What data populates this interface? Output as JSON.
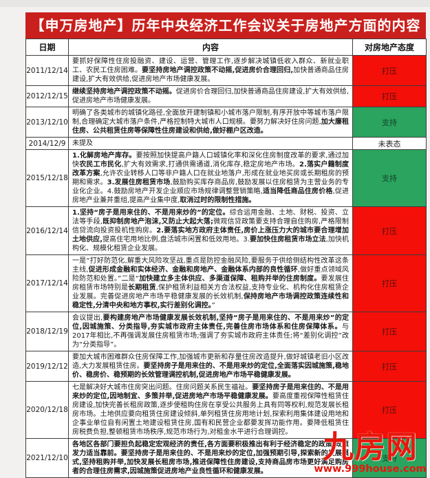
{
  "page": {
    "title": "【申万房地产】历年中央经济工作会议关于房地产方面的内容"
  },
  "colors": {
    "title_bg": "#c9201d",
    "suppress_bg": "#f40f08",
    "support_bg": "#2aa45e",
    "watermark_red": "#e8170d"
  },
  "table": {
    "headers": {
      "date": "日期",
      "content": "内容",
      "attitude": "对房地产态度"
    },
    "rows": [
      {
        "date": "2011/12/14",
        "attitude": "打压",
        "attitude_type": "suppress",
        "segments": [
          {
            "b": false,
            "t": "要抓好保障性住房投融资、建设、运营、管理工作,逐步解决城镇低收入群众、新就业职工、农民工住房困难。"
          },
          {
            "b": true,
            "t": "要坚持房地产调控政策不动摇,促进房价合理回归,"
          },
          {
            "b": false,
            "t": "加快普通商品住房建设,扩大有效供给,促进房地产市场健康发展。"
          }
        ]
      },
      {
        "date": "2012/12/15",
        "attitude": "打压",
        "attitude_type": "suppress",
        "segments": [
          {
            "b": true,
            "t": "继续坚持房地产调控政策不动摇。"
          },
          {
            "b": false,
            "t": "促进房价合理回归,加快普通商品住房建设,扩大有效供给,促进房地产市场健康发展。"
          }
        ]
      },
      {
        "date": "2013/12/10",
        "attitude": "支持",
        "attitude_type": "support",
        "segments": [
          {
            "b": false,
            "t": "明确了各类城市的城镇化路径,全面放开建制镇和小城市落户限制,有序开放中等城市落户限制,合理确定大城市落户条件,严格控制特大城市人口规模。要努力解决好住房问题,"
          },
          {
            "b": true,
            "t": "加大廉租住房、公共租赁住房等保障性住房建设和供给,做好棚户区改造。"
          }
        ]
      },
      {
        "date": "2014/12/9",
        "attitude": "未表态",
        "attitude_type": "none",
        "segments": [
          {
            "b": false,
            "t": "未提及"
          }
        ]
      },
      {
        "date": "2015/12/18",
        "attitude": "支持",
        "attitude_type": "support",
        "segments": [
          {
            "b": true,
            "t": "1.化解房地产库存。"
          },
          {
            "b": false,
            "t": "要按照加快提高户籍人口城镇化率和深化住房制度改革的要求,通过加快"
          },
          {
            "b": true,
            "t": "农民工市民化"
          },
          {
            "b": false,
            "t": ",扩大有效需求,打通供需通道,消化库存,稳定房地产市场。"
          },
          {
            "b": true,
            "t": "2.落实户籍制度改革方案"
          },
          {
            "b": false,
            "t": ",允许农业转移人口等非户籍人口在就业地落户,形成在就业地买房或长期租房的预期和需求。"
          },
          {
            "b": true,
            "t": "3.发展住房租赁市场"
          },
          {
            "b": false,
            "t": ",鼓励购买库存商品房,鼓励发展以住房租赁为主营业务的专业化企业。4.鼓励房地产开发企业顺应市场规律调整营销策略,"
          },
          {
            "b": true,
            "t": "适当降低商品住房价格"
          },
          {
            "b": false,
            "t": ",促进房地产业兼并重组,提高产业集中度,"
          },
          {
            "b": true,
            "t": "取消过时的限制性措施。"
          }
        ]
      },
      {
        "date": "2016/12/14",
        "attitude": "打压",
        "attitude_type": "suppress",
        "segments": [
          {
            "b": true,
            "t": "1.坚持“房子是用来住的、不是用来炒的”的定位。"
          },
          {
            "b": false,
            "t": "综合运用金融、土地、财税、投资、立法等手段,"
          },
          {
            "b": true,
            "t": "既抑制房地产泡沫,又防止大起大落;"
          },
          {
            "b": false,
            "t": "微观信贷政策要支持合理自住购房,严格限制信贷流向投资投机性购房。"
          },
          {
            "b": true,
            "t": "2.要落实地方政府主体责任,房价上涨压力大的城市要合理增加土地供应,"
          },
          {
            "b": false,
            "t": "提高住宅用地比例,盘活城市闲置和低效用地。3."
          },
          {
            "b": true,
            "t": "要加快住房租赁市场立法"
          },
          {
            "b": false,
            "t": ",加快机构化、规模化租赁企业发展。"
          }
        ]
      },
      {
        "date": "2017/12/14",
        "attitude": "打压",
        "attitude_type": "suppress",
        "segments": [
          {
            "b": false,
            "t": "一是“打好防范化,解重大风险攻坚战,重点是防控金融风险,要服务于供给侧结构性改革这条主线,"
          },
          {
            "b": true,
            "t": "促进形成金融和实体经济、金融和房地产、金融体系内部的良性循环"
          },
          {
            "b": false,
            "t": ",做好重点领域风险防范和处置。”二是“"
          },
          {
            "b": true,
            "t": "加快建立多主体供应、多渠道保障、租购并举的住房制度。"
          },
          {
            "b": false,
            "t": "要发展住房租赁市场特别是"
          },
          {
            "b": true,
            "t": "长期租赁"
          },
          {
            "b": false,
            "t": ",保护租赁利益相关方合法权益,支持专业化、机构化住房租赁企业发展。完善促进房地产市场平稳健康发展的长效机制,"
          },
          {
            "b": true,
            "t": "保持房地产市场调控政策连续性和稳定性,分清中央和地方事权,实行差别化调控。"
          },
          {
            "b": false,
            "t": "”"
          }
        ]
      },
      {
        "date": "2018/12/19",
        "attitude": "打压",
        "attitude_type": "suppress",
        "segments": [
          {
            "b": false,
            "t": "会议提出,"
          },
          {
            "b": true,
            "t": "要构建房地产市场健康发展长效机制,坚持“房子是用来住的、不是用来炒”的定位,因城施策、分类指导,夯实城市政府主体责任,完善住房市场体系和住房保障体系。"
          },
          {
            "b": false,
            "t": "与2017年相比,不再强调发展住房租赁市场;强调了夯实城市政府主体责任;将“差别化调控”改为“分类指导”。"
          }
        ]
      },
      {
        "date": "2019/12/12",
        "attitude": "打压",
        "attitude_type": "suppress",
        "segments": [
          {
            "b": false,
            "t": "要加大城市困难群众住房保障工作,加强城市更新和存量住房改造提升,做好城镇老旧小区改造,大力发展租赁住房。"
          },
          {
            "b": true,
            "t": "要坚持房子是用来住的、不是用来炒的定位,全面落实因城施策,稳地价、稳房价、稳预期的长效管理调控机制,促进房地产市场平稳健康发展。"
          }
        ]
      },
      {
        "date": "2020/12/18",
        "attitude": "打压",
        "attitude_type": "suppress",
        "segments": [
          {
            "b": false,
            "t": "七是解决好大城市住房突出问题。住房问题关系民生福祉。"
          },
          {
            "b": true,
            "t": "要坚持房子是用来住的、不是用来炒的定位,因地制宜、多策并举,促进房地产市场平稳健康发展。"
          },
          {
            "b": false,
            "t": "要高度重视保障性租赁住房建设,加快完善长租房政策,逐步使租购住房在享受公共服务上具有同等权利,规范发展长租房市场。土地供应要向租赁住房建设倾斜,单列租赁住房用地计划,探索利用集体建设用地和企事业单位自有闲置土地建设租赁住房,国有和民营企业都要发挥功能作用。要降低租赁住房税费负担,整顿租赁市场秩序,规范市场行为,对租金水平进行合理调控。"
          }
        ]
      },
      {
        "date": "2021/12/10",
        "attitude": "支持",
        "attitude_type": "support",
        "segments": [
          {
            "b": true,
            "t": "各地区各部门要担负起稳定宏观经济的责任,各方面要积极推出有利于经济稳定的政策,政策发力适当靠前。要坚持房子是用来住的、不是用来炒的定位,加强预期引导,探索新的发展模式,坚持租购并举,加快发展长租房市场,推进保障性住房建设,支持商品房市场更好满足购房者的合理住房需求,因城施策促进房地产业良性循环和健康发展。"
          }
        ]
      }
    ]
  },
  "watermark": {
    "logo": "九房网",
    "url": "www.999house.com"
  }
}
